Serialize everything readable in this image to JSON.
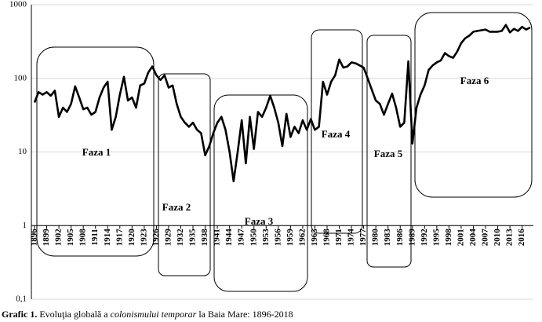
{
  "chart_data": {
    "type": "line",
    "log_y": true,
    "grid": true,
    "color": "#000000",
    "caption": [
      "Grafic 1.",
      " Evoluţia globală a ",
      "colonismului temporar",
      " la Baia Mare: 1896-2018"
    ],
    "annotations": [
      "Faza 1",
      "Faza 2",
      "Faza 3",
      "Faza 4",
      "Faza 5",
      "Faza 6"
    ],
    "ylim": [
      0.1,
      1000
    ],
    "yticks": [
      {
        "value": 0.1,
        "label": "0,1"
      },
      1,
      10,
      100,
      1000
    ],
    "xlim": [
      1896,
      2018
    ],
    "xticks": [
      1896,
      1899,
      1902,
      1905,
      1908,
      1911,
      1914,
      1917,
      1920,
      1923,
      1926,
      1929,
      1932,
      1935,
      1938,
      1941,
      1944,
      1947,
      1950,
      1953,
      1956,
      1959,
      1962,
      1965,
      1968,
      1971,
      1974,
      1977,
      1980,
      1983,
      1986,
      1989,
      1992,
      1995,
      1998,
      2001,
      2004,
      2007,
      2010,
      2013,
      2016
    ],
    "x": [
      1896,
      1897,
      1898,
      1899,
      1900,
      1901,
      1902,
      1903,
      1904,
      1905,
      1906,
      1907,
      1908,
      1909,
      1910,
      1911,
      1912,
      1913,
      1914,
      1915,
      1916,
      1917,
      1918,
      1919,
      1920,
      1921,
      1922,
      1923,
      1924,
      1925,
      1926,
      1927,
      1928,
      1929,
      1930,
      1931,
      1932,
      1933,
      1934,
      1935,
      1936,
      1937,
      1938,
      1939,
      1940,
      1941,
      1942,
      1943,
      1944,
      1945,
      1946,
      1947,
      1948,
      1949,
      1950,
      1951,
      1952,
      1953,
      1954,
      1955,
      1956,
      1957,
      1958,
      1959,
      1960,
      1961,
      1962,
      1963,
      1964,
      1965,
      1966,
      1967,
      1968,
      1969,
      1970,
      1971,
      1972,
      1973,
      1974,
      1975,
      1976,
      1977,
      1978,
      1979,
      1980,
      1981,
      1982,
      1983,
      1984,
      1985,
      1986,
      1987,
      1988,
      1989,
      1990,
      1991,
      1992,
      1993,
      1994,
      1995,
      1996,
      1997,
      1998,
      1999,
      2000,
      2001,
      2002,
      2003,
      2004,
      2005,
      2006,
      2007,
      2008,
      2009,
      2010,
      2011,
      2012,
      2013,
      2014,
      2015,
      2016,
      2017,
      2018
    ],
    "values": [
      47,
      65,
      60,
      65,
      58,
      68,
      30,
      40,
      35,
      45,
      78,
      55,
      38,
      40,
      32,
      35,
      55,
      75,
      90,
      20,
      30,
      60,
      105,
      50,
      55,
      40,
      80,
      85,
      120,
      145,
      110,
      95,
      110,
      75,
      80,
      45,
      30,
      25,
      22,
      25,
      20,
      18,
      9,
      12,
      18,
      25,
      30,
      20,
      10,
      4,
      10,
      27,
      7,
      30,
      11,
      35,
      30,
      40,
      58,
      40,
      25,
      12,
      33,
      16,
      22,
      18,
      27,
      20,
      28,
      20,
      22,
      90,
      60,
      90,
      110,
      180,
      140,
      145,
      165,
      160,
      150,
      140,
      100,
      70,
      50,
      45,
      32,
      45,
      62,
      40,
      22,
      25,
      170,
      13,
      40,
      60,
      80,
      130,
      150,
      165,
      175,
      220,
      200,
      190,
      230,
      300,
      350,
      380,
      430,
      440,
      450,
      460,
      430,
      430,
      430,
      440,
      530,
      420,
      470,
      440,
      500,
      460,
      490
    ]
  }
}
